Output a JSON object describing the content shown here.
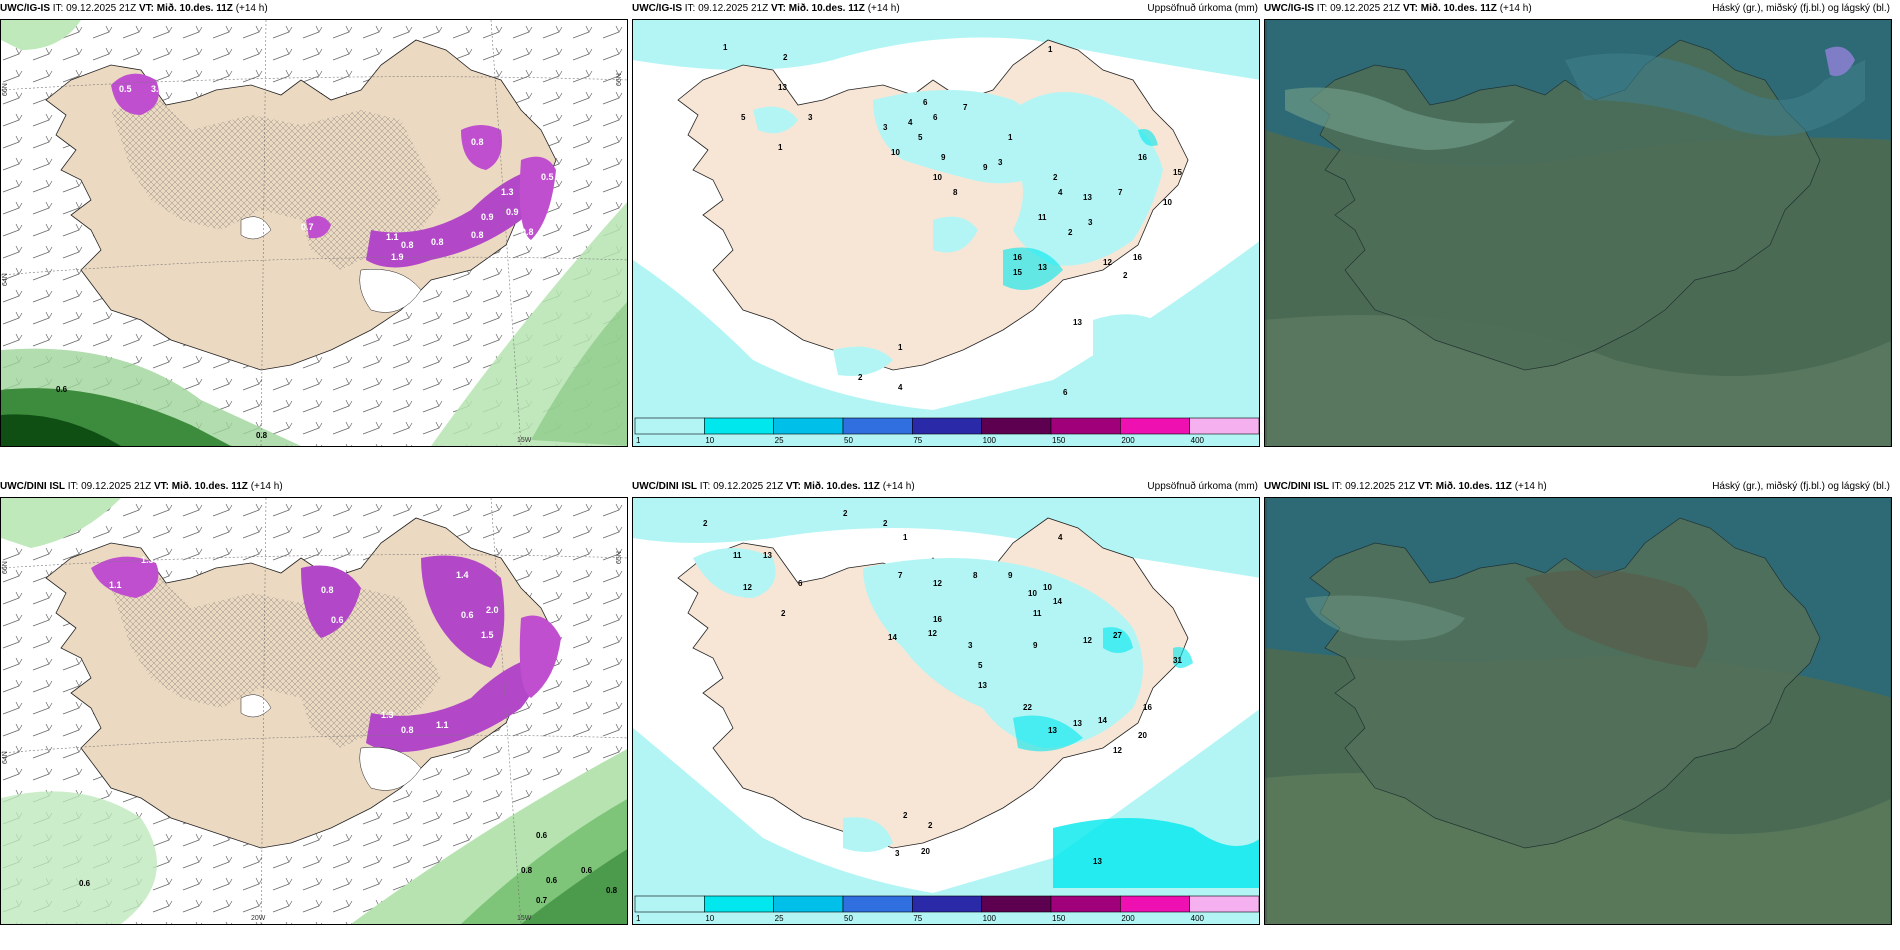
{
  "panels": {
    "top_left": {
      "model": "UWC/IG-IS",
      "it_label": "IT:",
      "it_value": "09.12.2025 21Z",
      "vt_label": "VT:",
      "vt_value": "Mið. 10.des. 11Z",
      "lead": "(+14 h)"
    },
    "top_mid": {
      "model": "UWC/IG-IS",
      "it_label": "IT:",
      "it_value": "09.12.2025 21Z",
      "vt_label": "VT:",
      "vt_value": "Mið. 10.des. 11Z",
      "lead": "(+14 h)",
      "title": "Uppsöfnuð úrkoma (mm)"
    },
    "top_right": {
      "model": "UWC/IG-IS",
      "it_label": "IT:",
      "it_value": "09.12.2025 21Z",
      "vt_label": "VT:",
      "vt_value": "Mið. 10.des. 11Z",
      "lead": "(+14 h)",
      "title": "Háský (gr.), miðský (fj.bl.) og lágský (bl.)"
    },
    "bot_left": {
      "model": "UWC/DINI ISL",
      "it_label": "IT:",
      "it_value": "09.12.2025 21Z",
      "vt_label": "VT:",
      "vt_value": "Mið. 10.des. 11Z",
      "lead": "(+14 h)"
    },
    "bot_mid": {
      "model": "UWC/DINI ISL",
      "it_label": "IT:",
      "it_value": "09.12.2025 21Z",
      "vt_label": "VT:",
      "vt_value": "Mið. 10.des. 11Z",
      "lead": "(+14 h)",
      "title": "Uppsöfnuð úrkoma (mm)"
    },
    "bot_right": {
      "model": "UWC/DINI ISL",
      "it_label": "IT:",
      "it_value": "09.12.2025 21Z",
      "vt_label": "VT:",
      "vt_value": "Mið. 10.des. 11Z",
      "lead": "(+14 h)",
      "title": "Háský (gr.), miðský (fj.bl.) og lágský (bl.)"
    }
  },
  "legend": {
    "ticks": [
      "1",
      "10",
      "25",
      "50",
      "75",
      "100",
      "150",
      "200",
      "400"
    ],
    "colors": [
      "#b3f5f5",
      "#00e8ee",
      "#00bfe8",
      "#2f6fe0",
      "#2a2aa8",
      "#5e0050",
      "#a0007a",
      "#ee10b0",
      "#f5b0f0"
    ]
  },
  "axis_labels": {
    "lat_66": "66N",
    "lat_65": "65N",
    "lat_64": "64N",
    "lat_63": "63N",
    "lon_20": "20W",
    "lon_15": "15W"
  },
  "top_left_values": [
    "3.0",
    "0.5",
    "0.7",
    "0.8",
    "0.8",
    "0.8",
    "0.8",
    "0.9",
    "1.1",
    "0.9",
    "1.3",
    "0.8",
    "1.9",
    "0.5",
    "0.6",
    "0.8"
  ],
  "bot_left_values": [
    "1.3",
    "1.1",
    "0.8",
    "0.6",
    "1.4",
    "2.0",
    "1.5",
    "0.8",
    "1.1",
    "0.6",
    "0.6",
    "0.6",
    "0.8",
    "0.6",
    "0.7",
    "0.8",
    "0.6",
    "1.3"
  ],
  "top_mid_values": [
    "1",
    "2",
    "13",
    "5",
    "3",
    "1",
    "3",
    "6",
    "7",
    "6",
    "4",
    "5",
    "9",
    "10",
    "9",
    "10",
    "8",
    "3",
    "1",
    "2",
    "4",
    "13",
    "7",
    "11",
    "2",
    "3",
    "16",
    "15",
    "13",
    "16",
    "16",
    "12",
    "2",
    "13",
    "1",
    "6",
    "2",
    "4",
    "1",
    "10",
    "15"
  ],
  "bot_mid_values": [
    "2",
    "2",
    "2",
    "1",
    "11",
    "13",
    "12",
    "6",
    "2",
    "7",
    "12",
    "8",
    "4",
    "9",
    "10",
    "10",
    "11",
    "14",
    "16",
    "14",
    "12",
    "12",
    "27",
    "3",
    "5",
    "31",
    "13",
    "22",
    "13",
    "14",
    "16",
    "20",
    "12",
    "13",
    "2",
    "2",
    "3",
    "20",
    "13",
    "9"
  ]
}
